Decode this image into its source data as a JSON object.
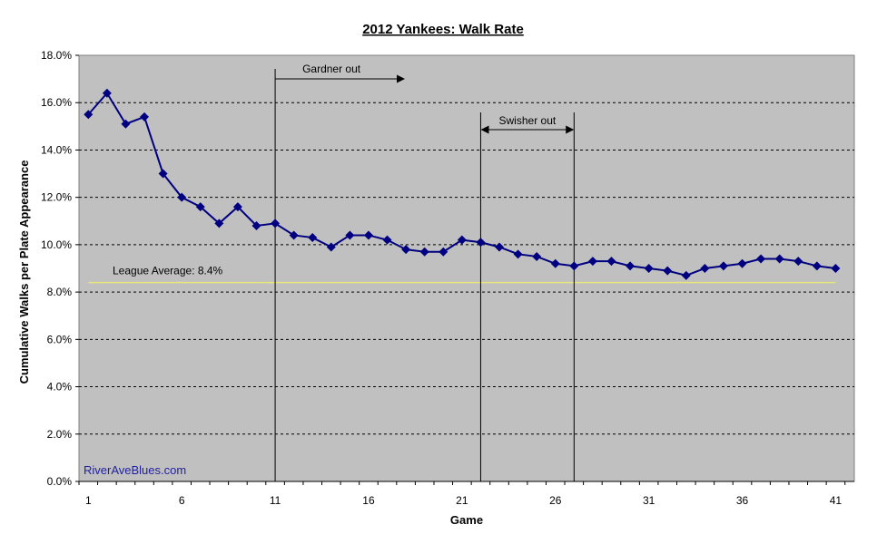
{
  "chart_data": {
    "type": "line",
    "title": "2012 Yankees: Walk Rate",
    "xlabel": "Game",
    "ylabel": "Cumulative Walks per Plate Appearance",
    "xlim": [
      1,
      41
    ],
    "ylim": [
      0,
      18
    ],
    "y_unit": "percent",
    "x_ticks": [
      "1",
      "6",
      "11",
      "16",
      "21",
      "26",
      "31",
      "36",
      "41"
    ],
    "y_ticks": [
      "0.0%",
      "2.0%",
      "4.0%",
      "6.0%",
      "8.0%",
      "10.0%",
      "12.0%",
      "14.0%",
      "16.0%",
      "18.0%"
    ],
    "grid": "horizontal-dashed",
    "series": [
      {
        "color": "#000080",
        "marker": "diamond",
        "x": [
          1,
          2,
          3,
          4,
          5,
          6,
          7,
          8,
          9,
          10,
          11,
          12,
          13,
          14,
          15,
          16,
          17,
          18,
          19,
          20,
          21,
          22,
          23,
          24,
          25,
          26,
          27,
          28,
          29,
          30,
          31,
          32,
          33,
          34,
          35,
          36,
          37,
          38,
          39,
          40,
          41
        ],
        "values": [
          15.5,
          16.4,
          15.1,
          15.4,
          13.0,
          12.0,
          11.6,
          10.9,
          11.6,
          10.8,
          10.9,
          10.4,
          10.3,
          9.9,
          10.4,
          10.4,
          10.2,
          9.8,
          9.7,
          9.7,
          10.2,
          10.1,
          9.9,
          9.6,
          9.5,
          9.2,
          9.1,
          9.3,
          9.3,
          9.1,
          9.0,
          8.9,
          8.7,
          9.0,
          9.1,
          9.2,
          9.4,
          9.4,
          9.3,
          9.1,
          9.0
        ]
      }
    ],
    "reference_line": {
      "label": "League Average: 8.4%",
      "value": 8.4,
      "color": "#e8e87a"
    },
    "annotations": [
      {
        "text": "Gardner out",
        "x": 11,
        "arrow": "right",
        "arrow_to": 18
      },
      {
        "text": "Swisher out",
        "x_start": 22,
        "x_end": 27,
        "arrow": "both"
      }
    ],
    "watermark": "RiverAveBlues.com",
    "colors": {
      "plot_bg": "#c0c0c0",
      "line": "#000080"
    }
  }
}
